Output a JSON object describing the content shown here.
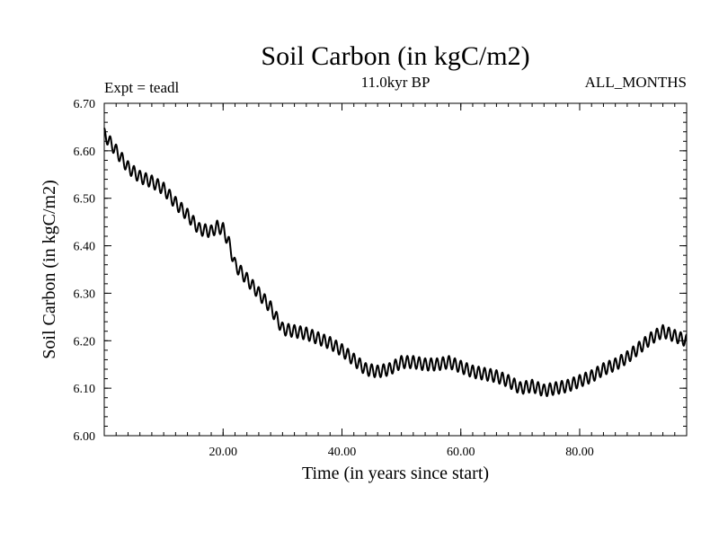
{
  "chart_data": {
    "type": "line",
    "title": "Soil Carbon (in kgC/m2)",
    "subtitle": "11.0kyr BP",
    "experiment_label": "Expt = teadl",
    "period_label": "ALL_MONTHS",
    "xlabel": "Time (in years since start)",
    "ylabel": "Soil Carbon (in kgC/m2)",
    "xlim": [
      0,
      98
    ],
    "ylim": [
      6.0,
      6.7
    ],
    "xticks": [
      20,
      40,
      60,
      80
    ],
    "xtick_labels": [
      "20.00",
      "40.00",
      "60.00",
      "80.00"
    ],
    "yticks": [
      6.0,
      6.1,
      6.2,
      6.3,
      6.4,
      6.5,
      6.6,
      6.7
    ],
    "ytick_labels": [
      "6.00",
      "6.10",
      "6.20",
      "6.30",
      "6.40",
      "6.50",
      "6.60",
      "6.70"
    ],
    "grid": false,
    "seasonal_amplitude": 0.013,
    "series": [
      {
        "name": "Soil Carbon",
        "color": "#000000",
        "x": [
          0,
          2,
          4,
          6,
          8,
          10,
          12,
          14,
          16,
          18,
          19,
          20,
          21,
          22,
          24,
          26,
          28,
          30,
          32,
          34,
          36,
          38,
          40,
          42,
          44,
          46,
          48,
          50,
          52,
          54,
          56,
          58,
          60,
          62,
          64,
          66,
          68,
          70,
          72,
          74,
          76,
          78,
          80,
          82,
          84,
          86,
          88,
          90,
          92,
          94,
          96,
          98
        ],
        "y": [
          6.635,
          6.6,
          6.565,
          6.545,
          6.535,
          6.52,
          6.49,
          6.465,
          6.435,
          6.43,
          6.44,
          6.435,
          6.405,
          6.36,
          6.33,
          6.3,
          6.27,
          6.225,
          6.22,
          6.215,
          6.205,
          6.195,
          6.18,
          6.16,
          6.14,
          6.135,
          6.14,
          6.155,
          6.155,
          6.15,
          6.15,
          6.155,
          6.145,
          6.135,
          6.13,
          6.125,
          6.115,
          6.1,
          6.105,
          6.095,
          6.1,
          6.105,
          6.115,
          6.125,
          6.14,
          6.15,
          6.165,
          6.185,
          6.205,
          6.22,
          6.21,
          6.2
        ]
      }
    ]
  }
}
